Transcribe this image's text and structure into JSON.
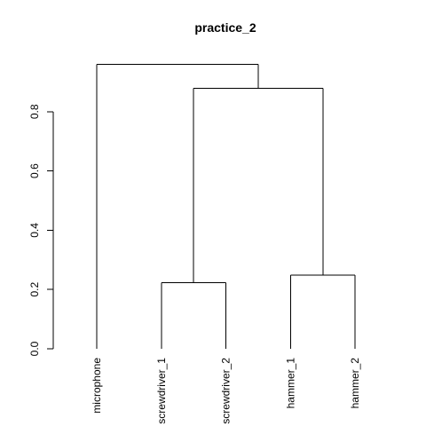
{
  "chart_data": {
    "type": "dendrogram",
    "title": "practice_2",
    "xlabel": "",
    "ylabel": "",
    "ylim": [
      0,
      0.96
    ],
    "y_ticks": [
      0.0,
      0.2,
      0.4,
      0.6,
      0.8
    ],
    "y_tick_labels": [
      "0.0",
      "0.2",
      "0.4",
      "0.6",
      "0.8"
    ],
    "leaves": [
      "microphone",
      "screwdriver_1",
      "screwdriver_2",
      "hammer_1",
      "hammer_2"
    ],
    "merges": [
      {
        "left": "screwdriver_1",
        "right": "screwdriver_2",
        "height": 0.223
      },
      {
        "left": "hammer_1",
        "right": "hammer_2",
        "height": 0.248
      },
      {
        "left": "screwdriver_1+screwdriver_2",
        "right": "hammer_1+hammer_2",
        "height": 0.878
      },
      {
        "left": "microphone",
        "right": "screwdriver_1+screwdriver_2+hammer_1+hammer_2",
        "height": 0.96
      }
    ]
  }
}
